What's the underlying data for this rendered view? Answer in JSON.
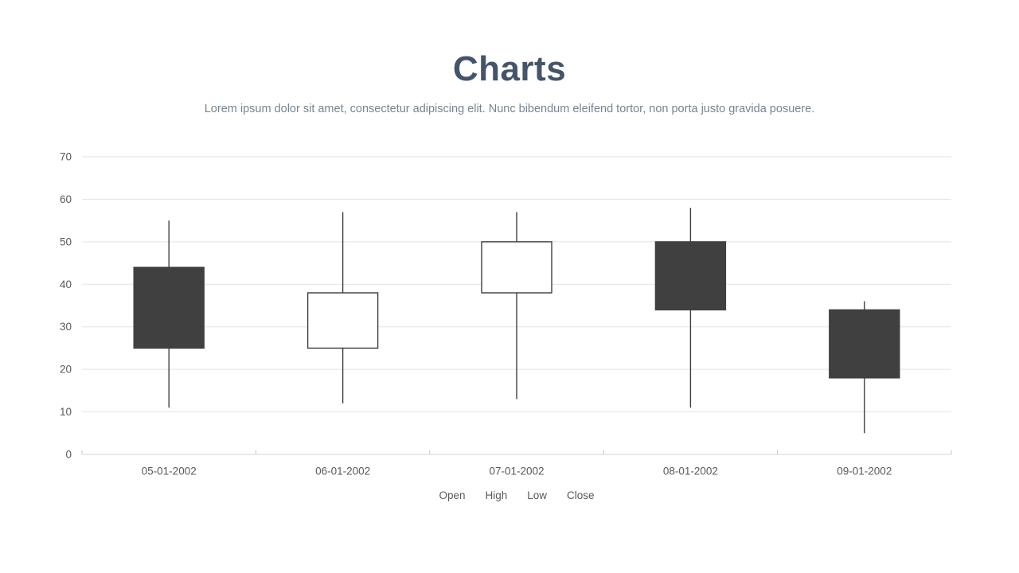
{
  "header": {
    "title": "Charts",
    "subtitle": "Lorem ipsum dolor sit amet, consectetur adipiscing elit. Nunc bibendum eleifend tortor, non porta justo gravida posuere."
  },
  "chart_data": {
    "type": "candlestick",
    "title": "Charts",
    "subtitle": "Lorem ipsum dolor sit amet, consectetur adipiscing elit. Nunc bibendum eleifend tortor, non porta justo gravida posuere.",
    "categories": [
      "05-01-2002",
      "06-01-2002",
      "07-01-2002",
      "08-01-2002",
      "09-01-2002"
    ],
    "points": [
      {
        "date": "05-01-2002",
        "open": 44,
        "high": 55,
        "low": 11,
        "close": 25,
        "direction": "down"
      },
      {
        "date": "06-01-2002",
        "open": 25,
        "high": 57,
        "low": 12,
        "close": 38,
        "direction": "up"
      },
      {
        "date": "07-01-2002",
        "open": 38,
        "high": 57,
        "low": 13,
        "close": 50,
        "direction": "up"
      },
      {
        "date": "08-01-2002",
        "open": 50,
        "high": 58,
        "low": 11,
        "close": 34,
        "direction": "down"
      },
      {
        "date": "09-01-2002",
        "open": 34,
        "high": 36,
        "low": 5,
        "close": 18,
        "direction": "down"
      }
    ],
    "legend": [
      "Open",
      "High",
      "Low",
      "Close"
    ],
    "legend_position": "bottom",
    "xlabel": "",
    "ylabel": "",
    "ylim": [
      0,
      70
    ],
    "ytick_step": 10,
    "ytick_labels": [
      "0",
      "10",
      "20",
      "30",
      "40",
      "50",
      "60",
      "70"
    ],
    "grid": true,
    "colors": {
      "title": "#44546a",
      "subtitle": "#778491",
      "down_fill": "#404040",
      "up_fill": "#ffffff",
      "candle_stroke": "#3f3f3f",
      "wick": "#3f3f3f",
      "gridline": "#e3e3e3",
      "axis_line": "#d6d6d6",
      "tick_mark": "#c9c9c9",
      "tick_label": "#595959",
      "legend_text": "#595959",
      "background": "#ffffff"
    }
  }
}
